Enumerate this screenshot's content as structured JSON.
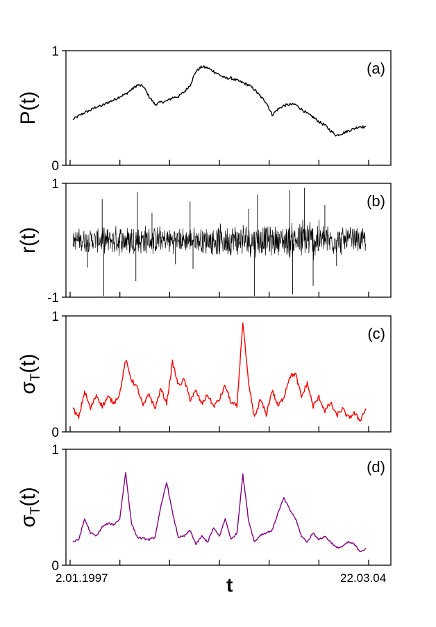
{
  "chart_data": [
    {
      "type": "line",
      "panel_label": "(a)",
      "ylabel": "P(t)",
      "ylim": [
        0,
        1
      ],
      "y_ticks": [
        "0",
        "1"
      ],
      "color": "#000000",
      "x_tick_count": 7,
      "x": [
        0.0,
        0.02,
        0.04,
        0.06,
        0.08,
        0.1,
        0.12,
        0.14,
        0.16,
        0.18,
        0.2,
        0.22,
        0.24,
        0.26,
        0.28,
        0.3,
        0.32,
        0.34,
        0.36,
        0.38,
        0.4,
        0.42,
        0.44,
        0.46,
        0.48,
        0.5,
        0.52,
        0.54,
        0.56,
        0.58,
        0.6,
        0.62,
        0.64,
        0.66,
        0.68,
        0.7,
        0.72,
        0.74,
        0.76,
        0.78,
        0.8,
        0.82,
        0.84,
        0.86,
        0.88,
        0.9,
        0.92,
        0.94,
        0.96,
        0.98,
        1.0
      ],
      "y": [
        0.4,
        0.43,
        0.46,
        0.48,
        0.51,
        0.52,
        0.55,
        0.57,
        0.6,
        0.62,
        0.66,
        0.7,
        0.69,
        0.6,
        0.53,
        0.55,
        0.56,
        0.59,
        0.6,
        0.64,
        0.7,
        0.82,
        0.86,
        0.85,
        0.82,
        0.79,
        0.76,
        0.76,
        0.74,
        0.72,
        0.7,
        0.66,
        0.6,
        0.55,
        0.44,
        0.49,
        0.52,
        0.53,
        0.53,
        0.49,
        0.45,
        0.42,
        0.38,
        0.35,
        0.3,
        0.26,
        0.28,
        0.3,
        0.32,
        0.34,
        0.33
      ],
      "noise_amplitude": 0.012
    },
    {
      "type": "line",
      "panel_label": "(b)",
      "ylabel": "r(t)",
      "ylim": [
        -1,
        1
      ],
      "y_ticks": [
        "-1",
        "1"
      ],
      "color": "#000000",
      "x_tick_count": 7,
      "x": [
        0.0,
        0.1,
        0.2,
        0.3,
        0.4,
        0.5,
        0.6,
        0.7,
        0.8,
        0.9,
        1.0
      ],
      "y": [
        0.18,
        0.2,
        0.28,
        0.22,
        0.2,
        0.25,
        0.28,
        0.23,
        0.38,
        0.24,
        0.2
      ],
      "spikes": [
        {
          "x": 0.1,
          "y": 0.72
        },
        {
          "x": 0.105,
          "y": -0.98
        },
        {
          "x": 0.22,
          "y": 0.85
        },
        {
          "x": 0.215,
          "y": -0.72
        },
        {
          "x": 0.4,
          "y": 0.68
        },
        {
          "x": 0.41,
          "y": -0.5
        },
        {
          "x": 0.63,
          "y": 0.8
        },
        {
          "x": 0.62,
          "y": -0.98
        },
        {
          "x": 0.74,
          "y": 0.88
        },
        {
          "x": 0.75,
          "y": -0.95
        },
        {
          "x": 0.79,
          "y": 0.92
        },
        {
          "x": 0.82,
          "y": -0.8
        },
        {
          "x": 0.86,
          "y": 0.62
        },
        {
          "x": 0.9,
          "y": -0.45
        },
        {
          "x": 0.05,
          "y": -0.48
        },
        {
          "x": 0.6,
          "y": 0.55
        },
        {
          "x": 0.35,
          "y": -0.42
        },
        {
          "x": 0.27,
          "y": 0.48
        }
      ]
    },
    {
      "type": "line",
      "panel_label": "(c)",
      "ylabel": "σT(t)",
      "ylabel_main": "σ",
      "ylabel_sub": "T",
      "ylabel_rest": "(t)",
      "ylim": [
        0,
        1
      ],
      "y_ticks": [
        "0",
        "1"
      ],
      "color": "#ff0000",
      "x_tick_count": 7,
      "x": [
        0.0,
        0.02,
        0.04,
        0.06,
        0.08,
        0.1,
        0.12,
        0.14,
        0.16,
        0.18,
        0.2,
        0.22,
        0.24,
        0.26,
        0.28,
        0.3,
        0.32,
        0.34,
        0.36,
        0.38,
        0.4,
        0.42,
        0.44,
        0.46,
        0.48,
        0.5,
        0.52,
        0.54,
        0.56,
        0.58,
        0.6,
        0.62,
        0.64,
        0.66,
        0.68,
        0.7,
        0.72,
        0.74,
        0.76,
        0.78,
        0.8,
        0.82,
        0.84,
        0.86,
        0.88,
        0.9,
        0.92,
        0.94,
        0.96,
        0.98,
        1.0
      ],
      "y": [
        0.2,
        0.12,
        0.35,
        0.2,
        0.32,
        0.22,
        0.3,
        0.25,
        0.33,
        0.62,
        0.45,
        0.38,
        0.22,
        0.33,
        0.2,
        0.37,
        0.25,
        0.6,
        0.4,
        0.45,
        0.28,
        0.35,
        0.24,
        0.32,
        0.22,
        0.28,
        0.4,
        0.25,
        0.22,
        0.95,
        0.4,
        0.12,
        0.28,
        0.15,
        0.36,
        0.22,
        0.3,
        0.48,
        0.5,
        0.3,
        0.42,
        0.22,
        0.3,
        0.18,
        0.25,
        0.14,
        0.2,
        0.12,
        0.16,
        0.1,
        0.2
      ],
      "noise_amplitude": 0.02
    },
    {
      "type": "line",
      "panel_label": "(d)",
      "ylabel": "σT(t)",
      "ylabel_main": "σ",
      "ylabel_sub": "T",
      "ylabel_rest": "(t)",
      "ylim": [
        0,
        1
      ],
      "y_ticks": [
        "0",
        "1"
      ],
      "color": "#800080",
      "x_tick_count": 7,
      "x": [
        0.0,
        0.02,
        0.04,
        0.06,
        0.08,
        0.1,
        0.12,
        0.14,
        0.16,
        0.18,
        0.2,
        0.22,
        0.24,
        0.26,
        0.28,
        0.3,
        0.32,
        0.34,
        0.36,
        0.38,
        0.4,
        0.42,
        0.44,
        0.46,
        0.48,
        0.5,
        0.52,
        0.54,
        0.56,
        0.58,
        0.6,
        0.62,
        0.64,
        0.66,
        0.68,
        0.7,
        0.72,
        0.74,
        0.76,
        0.78,
        0.8,
        0.82,
        0.84,
        0.86,
        0.88,
        0.9,
        0.92,
        0.94,
        0.96,
        0.98,
        1.0
      ],
      "y": [
        0.2,
        0.22,
        0.4,
        0.28,
        0.25,
        0.33,
        0.36,
        0.35,
        0.4,
        0.8,
        0.36,
        0.24,
        0.23,
        0.22,
        0.24,
        0.5,
        0.72,
        0.45,
        0.24,
        0.25,
        0.3,
        0.18,
        0.25,
        0.2,
        0.32,
        0.25,
        0.4,
        0.22,
        0.28,
        0.78,
        0.38,
        0.2,
        0.26,
        0.28,
        0.3,
        0.45,
        0.58,
        0.48,
        0.4,
        0.25,
        0.2,
        0.28,
        0.22,
        0.25,
        0.2,
        0.15,
        0.16,
        0.2,
        0.18,
        0.12,
        0.14
      ],
      "noise_amplitude": 0.008
    }
  ],
  "x_axis": {
    "label": "t",
    "start_label": "2.01.1997",
    "end_label": "22.03.04"
  }
}
